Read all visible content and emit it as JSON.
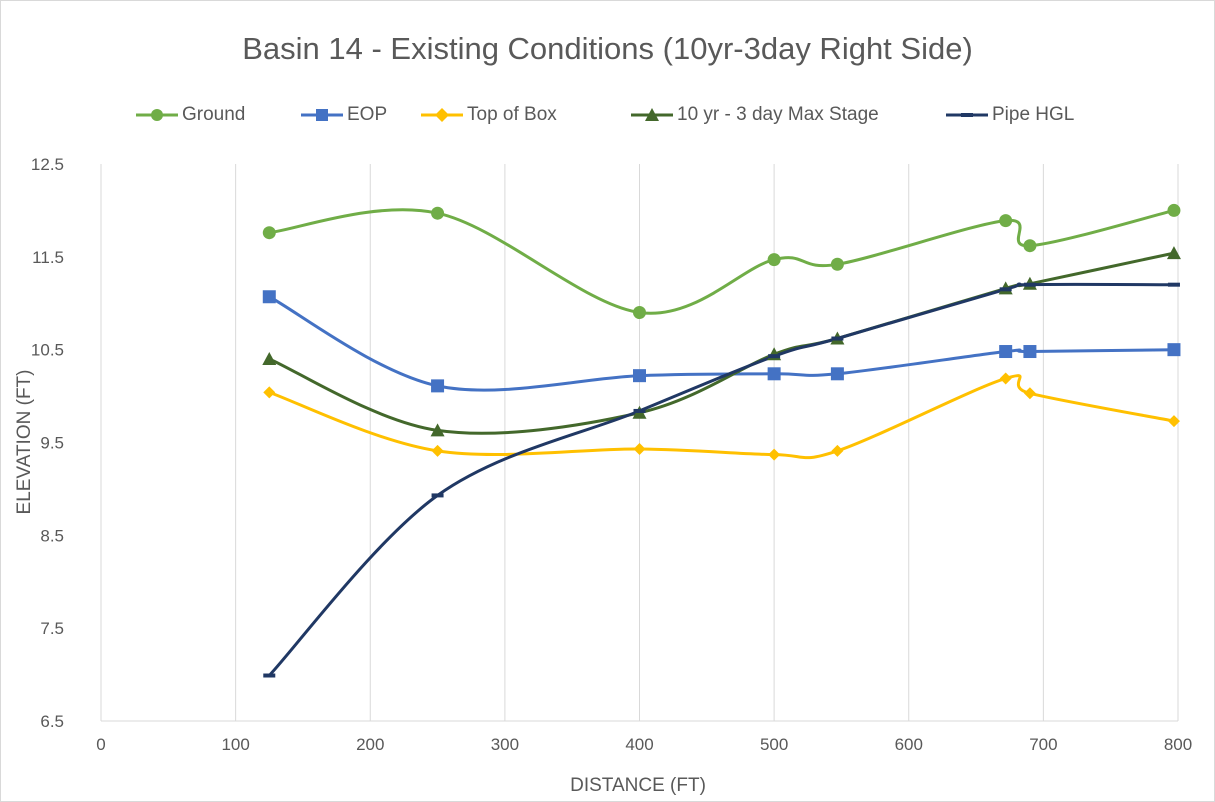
{
  "chart_data": {
    "type": "line",
    "title": "Basin 14 - Existing Conditions (10yr-3day Right Side)",
    "xlabel": "DISTANCE (FT)",
    "ylabel": "ELEVATION (FT)",
    "xlim": [
      0,
      800
    ],
    "ylim": [
      6.5,
      12.5
    ],
    "x_ticks": [
      "0",
      "100",
      "200",
      "300",
      "400",
      "500",
      "600",
      "700",
      "800"
    ],
    "y_ticks": [
      "6.5",
      "7.5",
      "8.5",
      "9.5",
      "10.5",
      "11.5",
      "12.5"
    ],
    "grid": "vertical",
    "legend_position": "top",
    "smooth": true,
    "series": [
      {
        "name": "Ground",
        "color": "#70ad47",
        "marker": "circle",
        "x": [
          125,
          250,
          400,
          500,
          547,
          672,
          690,
          797
        ],
        "y": [
          11.76,
          11.97,
          10.9,
          11.47,
          11.42,
          11.89,
          11.62,
          12.0
        ]
      },
      {
        "name": "EOP",
        "color": "#4472c4",
        "marker": "square",
        "x": [
          125,
          250,
          400,
          500,
          547,
          672,
          690,
          797
        ],
        "y": [
          11.07,
          10.11,
          10.22,
          10.24,
          10.24,
          10.48,
          10.48,
          10.5
        ]
      },
      {
        "name": "Top of Box",
        "color": "#ffc000",
        "marker": "diamond",
        "x": [
          125,
          250,
          400,
          500,
          547,
          672,
          690,
          797
        ],
        "y": [
          10.04,
          9.41,
          9.43,
          9.37,
          9.41,
          10.19,
          10.03,
          9.73
        ]
      },
      {
        "name": "10 yr - 3 day Max Stage",
        "color": "#43682b",
        "marker": "triangle",
        "x": [
          125,
          250,
          400,
          500,
          547,
          672,
          690,
          797
        ],
        "y": [
          10.4,
          9.63,
          9.82,
          10.45,
          10.62,
          11.16,
          11.21,
          11.54
        ]
      },
      {
        "name": "Pipe HGL",
        "color": "#203864",
        "marker": "dash",
        "x": [
          125,
          250,
          400,
          500,
          547,
          672,
          690,
          797
        ],
        "y": [
          6.99,
          8.93,
          9.84,
          10.43,
          10.62,
          11.15,
          11.2,
          11.2
        ]
      }
    ]
  }
}
